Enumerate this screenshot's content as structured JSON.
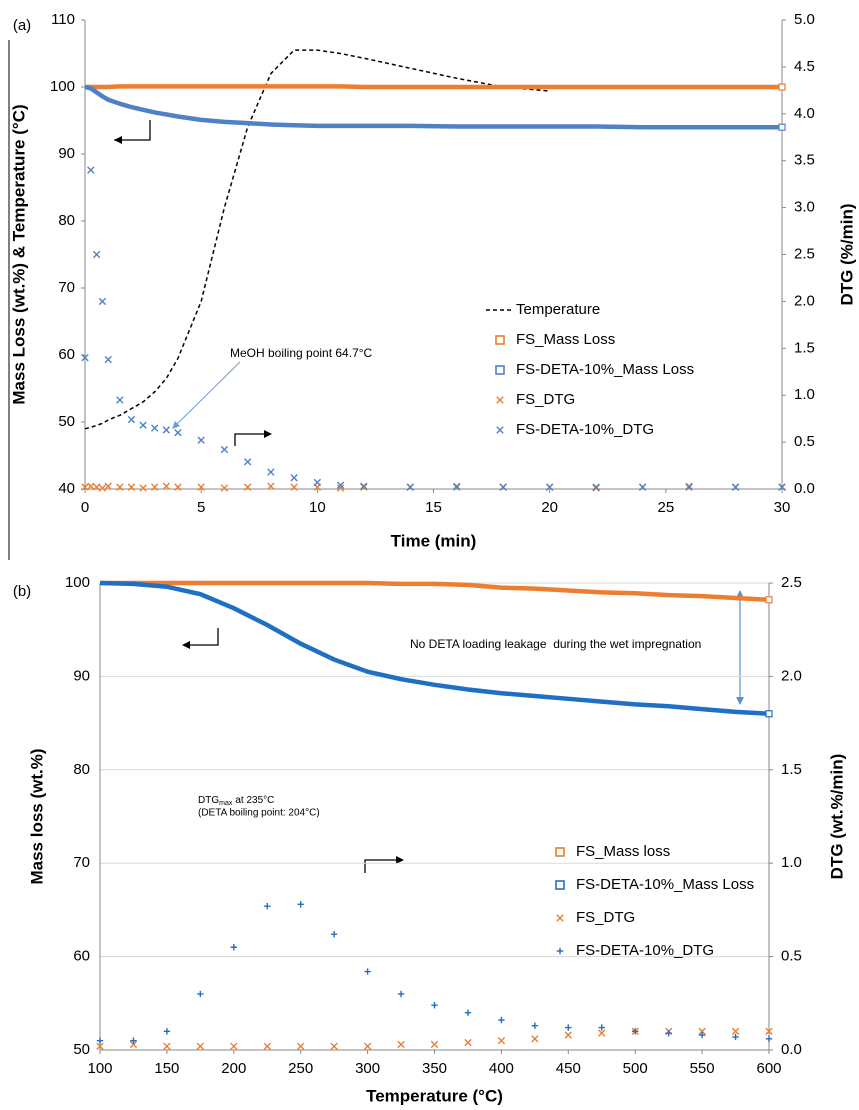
{
  "chart_data": [
    {
      "type": "line",
      "panel": "(a)",
      "x_label": "Time (min)",
      "y_label": "Mass Loss (wt.%) & Temperature (°C)",
      "y2_label": "DTG (%/min)",
      "annotations": [
        "MeOH boiling point 64.7°C"
      ],
      "x": [
        0,
        0.25,
        0.5,
        0.75,
        1,
        1.5,
        2,
        2.5,
        3,
        3.5,
        4,
        5,
        6,
        7,
        8,
        9,
        10,
        11,
        12,
        14,
        16,
        18,
        20,
        22,
        24,
        26,
        28,
        30
      ],
      "xlim": [
        0,
        30
      ],
      "xticks": [
        0,
        5,
        10,
        15,
        20,
        25,
        30
      ],
      "ylim": [
        40,
        110
      ],
      "yticks": [
        40,
        50,
        60,
        70,
        80,
        90,
        100,
        110
      ],
      "y2lim": [
        0,
        5
      ],
      "y2ticks": [
        {
          "value": 0,
          "label": "0.0"
        },
        {
          "value": 0.5,
          "label": "0.5"
        },
        {
          "value": 1,
          "label": "1.0"
        },
        {
          "value": 1.5,
          "label": "1.5"
        },
        {
          "value": 2,
          "label": "2.0"
        },
        {
          "value": 2.5,
          "label": "2.5"
        },
        {
          "value": 3,
          "label": "3.0"
        },
        {
          "value": 3.5,
          "label": "3.5"
        },
        {
          "value": 4,
          "label": "4.0"
        },
        {
          "value": 4.5,
          "label": "4.5"
        },
        {
          "value": 5,
          "label": "5.0"
        }
      ],
      "grid": false,
      "series": [
        {
          "name": "Temperature",
          "color": "#000000",
          "style": "dashed-line",
          "values": [
            49,
            49.2,
            49.5,
            49.8,
            50.3,
            51,
            52,
            53,
            54.5,
            56.5,
            59.5,
            68,
            82,
            94,
            102,
            105.5,
            105.5,
            105,
            104.3,
            102.8,
            101.3,
            100,
            99.4,
            null,
            null,
            null,
            null,
            null
          ]
        },
        {
          "name": "FS_Mass Loss",
          "color": "#ed7d31",
          "style": "thick-line",
          "values": [
            100,
            100,
            100,
            100,
            100,
            100.1,
            100.1,
            100.1,
            100.1,
            100.1,
            100.1,
            100.1,
            100.1,
            100.1,
            100.1,
            100.1,
            100.1,
            100.1,
            100,
            100,
            100,
            100,
            100,
            100,
            100,
            100,
            100,
            100
          ]
        },
        {
          "name": "FS-DETA-10%_Mass Loss",
          "color": "#4f81c7",
          "style": "thick-line",
          "values": [
            100,
            99.8,
            99.2,
            98.6,
            98.1,
            97.5,
            97,
            96.6,
            96.2,
            95.9,
            95.6,
            95.1,
            94.8,
            94.6,
            94.4,
            94.3,
            94.2,
            94.2,
            94.2,
            94.2,
            94.1,
            94.1,
            94.1,
            94.1,
            94,
            94,
            94,
            94
          ]
        },
        {
          "name": "FS_DTG",
          "color": "#ed7d31",
          "style": "x-marker",
          "axis": "y2",
          "values": [
            0.02,
            0.03,
            0.02,
            0.01,
            0.03,
            0.02,
            0.02,
            0.01,
            0.02,
            0.03,
            0.02,
            0.02,
            0.01,
            0.02,
            0.03,
            0.02,
            0.02,
            0.01,
            0.02,
            0.02,
            0.03,
            0.02,
            0.02,
            0.01,
            0.02,
            0.03,
            0.02,
            0.02
          ]
        },
        {
          "name": "FS-DETA-10%_DTG",
          "color": "#4f81c7",
          "style": "x-marker",
          "axis": "y2",
          "values": [
            1.4,
            3.4,
            2.5,
            2,
            1.38,
            0.95,
            0.74,
            0.68,
            0.65,
            0.63,
            0.6,
            0.52,
            0.42,
            0.29,
            0.18,
            0.12,
            0.07,
            0.04,
            0.03,
            0.02,
            0.02,
            0.02,
            0.02,
            0.02,
            0.02,
            0.02,
            0.02,
            0.02
          ]
        }
      ]
    },
    {
      "type": "line",
      "panel": "(b)",
      "x_label": "Temperature (°C)",
      "y_label": "Mass loss (wt.%)",
      "y2_label": "DTG (wt.%/min)",
      "annotations": [
        "No DETA loading leakage  during the wet impregnation",
        "DTG",
        "max",
        "at 235°C",
        "(DETA boiling point: 204°C)"
      ],
      "x": [
        100,
        125,
        150,
        175,
        200,
        225,
        250,
        275,
        300,
        325,
        350,
        375,
        400,
        425,
        450,
        475,
        500,
        525,
        550,
        575,
        600
      ],
      "xlim": [
        100,
        600
      ],
      "xticks": [
        100,
        150,
        200,
        250,
        300,
        350,
        400,
        450,
        500,
        550,
        600
      ],
      "ylim": [
        50,
        100
      ],
      "yticks": [
        50,
        60,
        70,
        80,
        90,
        100
      ],
      "y2lim": [
        0,
        2.5
      ],
      "y2ticks": [
        {
          "value": 0,
          "label": "0.0"
        },
        {
          "value": 0.5,
          "label": "0.5"
        },
        {
          "value": 1,
          "label": "1.0"
        },
        {
          "value": 1.5,
          "label": "1.5"
        },
        {
          "value": 2,
          "label": "2.0"
        },
        {
          "value": 2.5,
          "label": "2.5"
        }
      ],
      "grid": true,
      "series": [
        {
          "name": "FS_Mass loss",
          "color": "#ed7d31",
          "style": "thick-line",
          "values": [
            100,
            100,
            100,
            100,
            100,
            100,
            100,
            100,
            100,
            99.9,
            99.9,
            99.8,
            99.5,
            99.4,
            99.2,
            99,
            98.9,
            98.7,
            98.6,
            98.4,
            98.2
          ]
        },
        {
          "name": "FS-DETA-10%_Mass Loss",
          "color": "#1f6fc4",
          "style": "thick-line",
          "values": [
            100,
            99.9,
            99.6,
            98.8,
            97.3,
            95.5,
            93.5,
            91.8,
            90.5,
            89.7,
            89.1,
            88.6,
            88.2,
            87.9,
            87.6,
            87.3,
            87,
            86.8,
            86.5,
            86.2,
            86
          ]
        },
        {
          "name": "FS_DTG",
          "color": "#ed7d31",
          "style": "x-marker",
          "axis": "y2",
          "values": [
            0.02,
            0.03,
            0.02,
            0.02,
            0.02,
            0.02,
            0.02,
            0.02,
            0.02,
            0.03,
            0.03,
            0.04,
            0.05,
            0.06,
            0.08,
            0.09,
            0.1,
            0.1,
            0.1,
            0.1,
            0.1
          ]
        },
        {
          "name": "FS-DETA-10%_DTG",
          "color": "#1f6fc4",
          "style": "plus-marker",
          "axis": "y2",
          "values": [
            0.05,
            0.05,
            0.1,
            0.3,
            0.55,
            0.77,
            0.78,
            0.62,
            0.42,
            0.3,
            0.24,
            0.2,
            0.16,
            0.13,
            0.12,
            0.12,
            0.1,
            0.09,
            0.08,
            0.07,
            0.06
          ]
        }
      ]
    }
  ]
}
